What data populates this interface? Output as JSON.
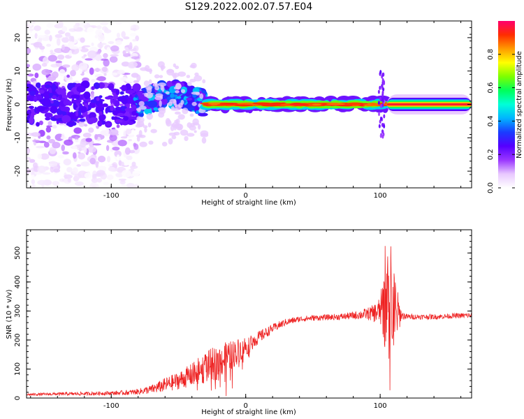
{
  "title": "S129.2022.002.07.57.E04",
  "chart_data": [
    {
      "type": "heatmap",
      "xlabel": "Height of straight line (km)",
      "ylabel": "Frequency (Hz)",
      "xlim": [
        -163,
        168
      ],
      "ylim": [
        -25,
        25
      ],
      "xticks": [
        -100,
        0,
        100
      ],
      "yticks": [
        -20,
        -10,
        0,
        10,
        20
      ],
      "colorbar": {
        "label": "Normalized spectral amplitude",
        "range": [
          0.0,
          1.0
        ],
        "ticks": [
          0.0,
          0.2,
          0.4,
          0.6,
          0.8
        ],
        "colormap": [
          "#ffffff",
          "#e8c8ff",
          "#9a36ff",
          "#5500ff",
          "#1a3cff",
          "#00b4ff",
          "#00ffd8",
          "#00ff5a",
          "#7dff00",
          "#ffff00",
          "#ff9a00",
          "#ff2d00",
          "#ff006e"
        ]
      },
      "regions": [
        {
          "x_range": [
            -163,
            -80
          ],
          "freq_spread_hz": 25,
          "amplitude": 0.15
        },
        {
          "x_range": [
            -80,
            -30
          ],
          "freq_center_hz": 3,
          "freq_spread_hz": 6,
          "amplitude": 0.4
        },
        {
          "x_range": [
            -30,
            105
          ],
          "freq_center_hz": 0,
          "freq_spread_hz": 1.5,
          "amplitude": 0.9
        },
        {
          "x_range": [
            105,
            168
          ],
          "freq_center_hz": 0,
          "freq_spread_hz": 1,
          "amplitude": 1.0
        }
      ]
    },
    {
      "type": "line",
      "xlabel": "Height of straight line (km)",
      "ylabel": "SNR (10 * v/v)",
      "xlim": [
        -163,
        168
      ],
      "ylim": [
        0,
        580
      ],
      "xticks": [
        -100,
        0,
        100
      ],
      "yticks": [
        0,
        100,
        200,
        300,
        400,
        500
      ],
      "color": "#ee2222",
      "x": [
        -163,
        -140,
        -120,
        -100,
        -90,
        -80,
        -70,
        -60,
        -50,
        -40,
        -30,
        -20,
        -10,
        0,
        10,
        20,
        30,
        40,
        50,
        60,
        70,
        80,
        90,
        95,
        100,
        104,
        108,
        112,
        116,
        120,
        130,
        140,
        150,
        160,
        168
      ],
      "y": [
        12,
        14,
        15,
        17,
        18,
        22,
        30,
        45,
        60,
        80,
        105,
        125,
        150,
        180,
        210,
        240,
        262,
        272,
        276,
        278,
        280,
        284,
        290,
        292,
        300,
        320,
        310,
        295,
        285,
        280,
        280,
        280,
        282,
        284,
        285
      ],
      "noise": [
        4,
        5,
        6,
        7,
        8,
        10,
        15,
        25,
        30,
        40,
        55,
        60,
        50,
        35,
        22,
        15,
        12,
        10,
        10,
        10,
        11,
        13,
        20,
        30,
        50,
        160,
        200,
        100,
        15,
        10,
        9,
        9,
        9,
        9,
        9
      ]
    }
  ]
}
